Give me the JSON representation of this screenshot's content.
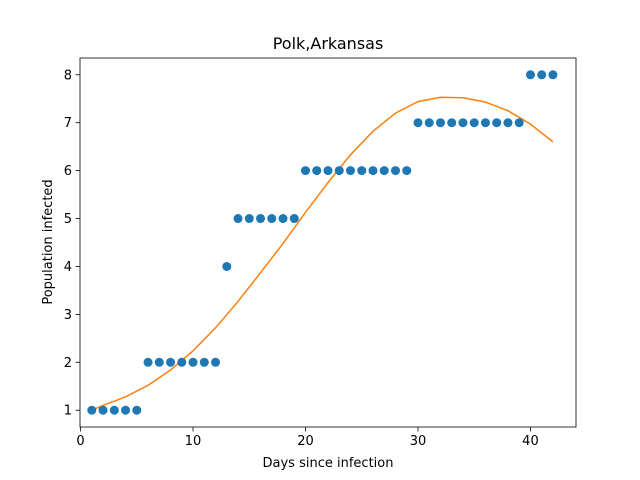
{
  "chart_data": {
    "type": "scatter",
    "title": "Polk,Arkansas",
    "xlabel": "Days since infection",
    "ylabel": "Population infected",
    "xlim": [
      -0.05,
      44.05
    ],
    "ylim": [
      0.65,
      8.35
    ],
    "xticks": [
      0,
      10,
      20,
      30,
      40
    ],
    "yticks": [
      1,
      2,
      3,
      4,
      5,
      6,
      7,
      8
    ],
    "grid": false,
    "colors": {
      "points": "#1f77b4",
      "fit": "#ff7f0e"
    },
    "series": [
      {
        "kind": "scatter",
        "x": [
          1,
          2,
          3,
          4,
          5,
          6,
          7,
          8,
          9,
          10,
          11,
          12,
          13,
          14,
          15,
          16,
          17,
          18,
          19,
          20,
          21,
          22,
          23,
          24,
          25,
          26,
          27,
          28,
          29,
          30,
          31,
          32,
          33,
          34,
          35,
          36,
          37,
          38,
          39,
          40,
          41,
          42
        ],
        "y": [
          1,
          1,
          1,
          1,
          1,
          2,
          2,
          2,
          2,
          2,
          2,
          2,
          4,
          5,
          5,
          5,
          5,
          5,
          5,
          6,
          6,
          6,
          6,
          6,
          6,
          6,
          6,
          6,
          6,
          7,
          7,
          7,
          7,
          7,
          7,
          7,
          7,
          7,
          7,
          8,
          8,
          8
        ]
      },
      {
        "kind": "line",
        "x": [
          1,
          2,
          4,
          6,
          8,
          10,
          12,
          14,
          16,
          18,
          20,
          22,
          24,
          26,
          28,
          30,
          32,
          34,
          36,
          38,
          40,
          42
        ],
        "y": [
          1.0,
          1.1,
          1.28,
          1.52,
          1.84,
          2.24,
          2.72,
          3.27,
          3.87,
          4.48,
          5.13,
          5.75,
          6.33,
          6.82,
          7.2,
          7.44,
          7.53,
          7.52,
          7.43,
          7.25,
          6.97,
          6.6
        ]
      }
    ]
  }
}
